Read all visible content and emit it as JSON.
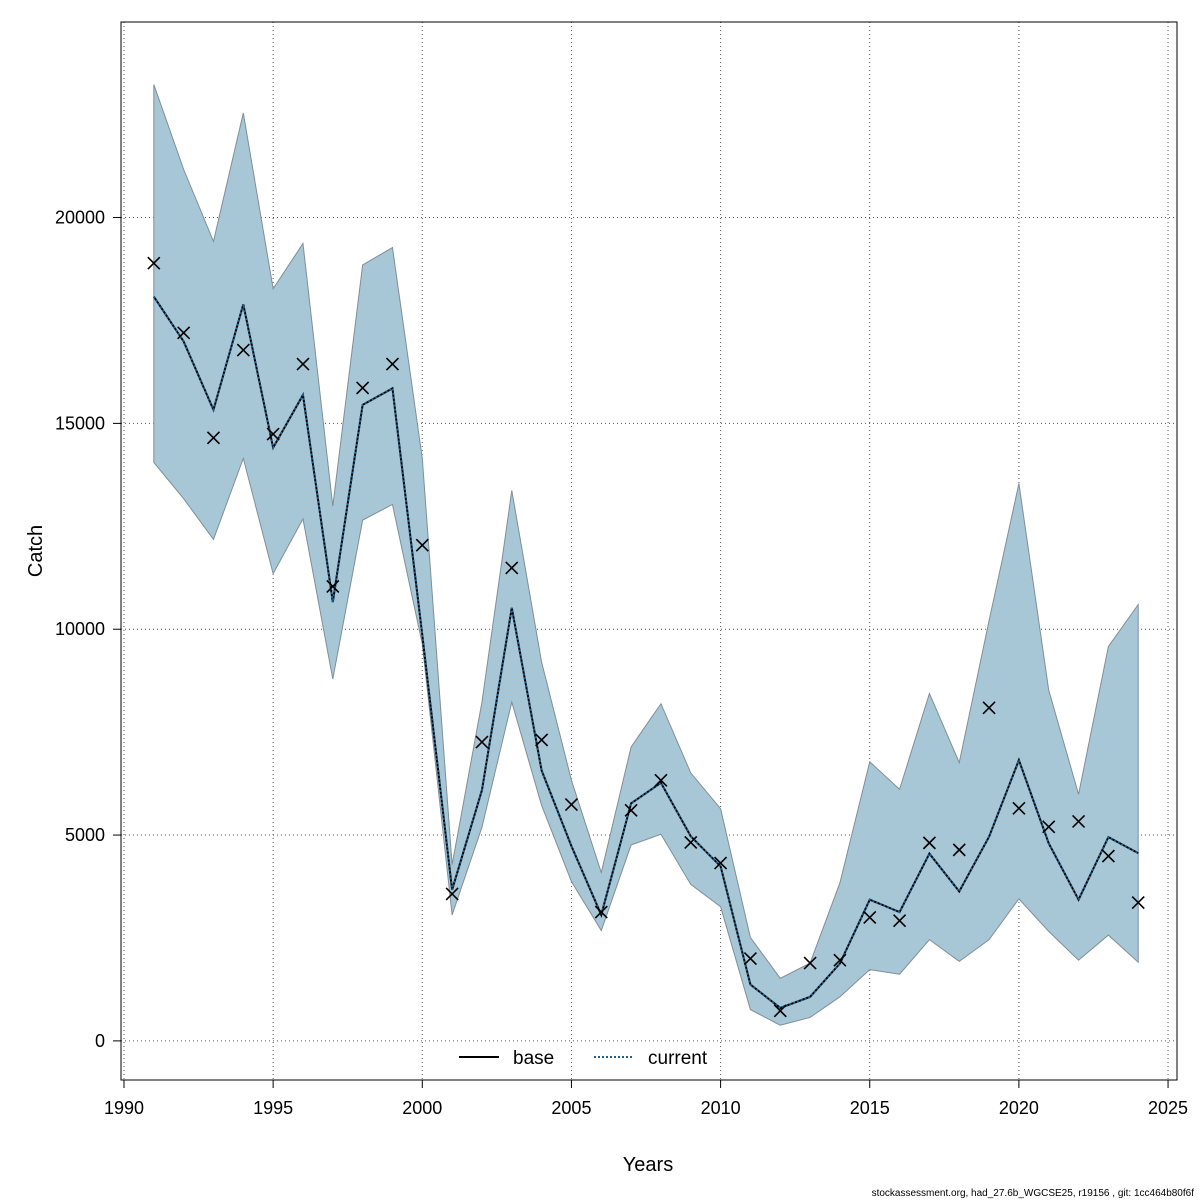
{
  "chart_data": {
    "type": "line",
    "xlabel": "Years",
    "ylabel": "Catch",
    "xlim": [
      1989.9,
      1990.0
    ],
    "x_axis_range": [
      1989.9,
      2025.3
    ],
    "ylim": [
      -950,
      24750
    ],
    "x_ticks": [
      1990,
      1995,
      2000,
      2005,
      2010,
      2015,
      2020,
      2025
    ],
    "y_ticks": [
      0,
      5000,
      10000,
      15000,
      20000
    ],
    "grid": true,
    "legend_position": "bottom-center",
    "x": [
      1991,
      1992,
      1993,
      1994,
      1995,
      1996,
      1997,
      1998,
      1999,
      2000,
      2001,
      2002,
      2003,
      2004,
      2005,
      2006,
      2007,
      2008,
      2009,
      2010,
      2011,
      2012,
      2013,
      2014,
      2015,
      2016,
      2017,
      2018,
      2019,
      2020,
      2021,
      2022,
      2023,
      2024
    ],
    "series": [
      {
        "name": "base",
        "style": "solid",
        "color": "#000000",
        "values": [
          18080,
          16990,
          15330,
          17890,
          14410,
          15690,
          10660,
          15450,
          15850,
          9860,
          3670,
          6090,
          10520,
          6570,
          4730,
          3060,
          5770,
          6270,
          4970,
          4240,
          1370,
          800,
          1070,
          1880,
          3430,
          3130,
          4550,
          3630,
          4960,
          6820,
          4800,
          3430,
          4950,
          4560
        ]
      },
      {
        "name": "current",
        "style": "dotted",
        "color": "#1f5f8b",
        "values": [
          18080,
          16990,
          15330,
          17890,
          14410,
          15690,
          10660,
          15450,
          15850,
          9860,
          3670,
          6090,
          10520,
          6570,
          4730,
          3060,
          5770,
          6270,
          4970,
          4240,
          1370,
          800,
          1070,
          1880,
          3430,
          3130,
          4550,
          3630,
          4960,
          6820,
          4800,
          3430,
          4950,
          4560
        ]
      }
    ],
    "confidence_band": {
      "color": "#a7c6d6",
      "lower": [
        14050,
        13170,
        12180,
        14150,
        11350,
        12680,
        8790,
        12650,
        13030,
        9640,
        3060,
        5190,
        8230,
        5720,
        3870,
        2680,
        4760,
        5020,
        3800,
        3260,
        760,
        380,
        570,
        1070,
        1730,
        1620,
        2460,
        1930,
        2460,
        3450,
        2660,
        1960,
        2570,
        1910
      ],
      "upper": [
        23230,
        21170,
        19420,
        22540,
        18270,
        19370,
        12990,
        18850,
        19270,
        14150,
        4280,
        8230,
        13370,
        9200,
        6330,
        4090,
        7140,
        8190,
        6510,
        5640,
        2510,
        1520,
        1890,
        3840,
        6780,
        6110,
        8440,
        6760,
        10210,
        13540,
        8520,
        5990,
        9580,
        10600
      ]
    },
    "observations": {
      "marker": "x",
      "values": [
        18890,
        17200,
        14650,
        16780,
        14740,
        16440,
        11040,
        15860,
        16440,
        12040,
        3570,
        7260,
        11490,
        7310,
        5740,
        3130,
        5600,
        6330,
        4820,
        4320,
        2000,
        730,
        1890,
        1960,
        3000,
        2920,
        4810,
        4640,
        8090,
        5650,
        5200,
        5330,
        4490,
        3360
      ]
    }
  },
  "legend": {
    "items": [
      {
        "label": "base",
        "style": "solid"
      },
      {
        "label": "current",
        "style": "dotted"
      }
    ]
  },
  "footer_text": "stockassessment.org, had_27.6b_WGCSE25, r19156 , git: 1cc464b80f6f"
}
